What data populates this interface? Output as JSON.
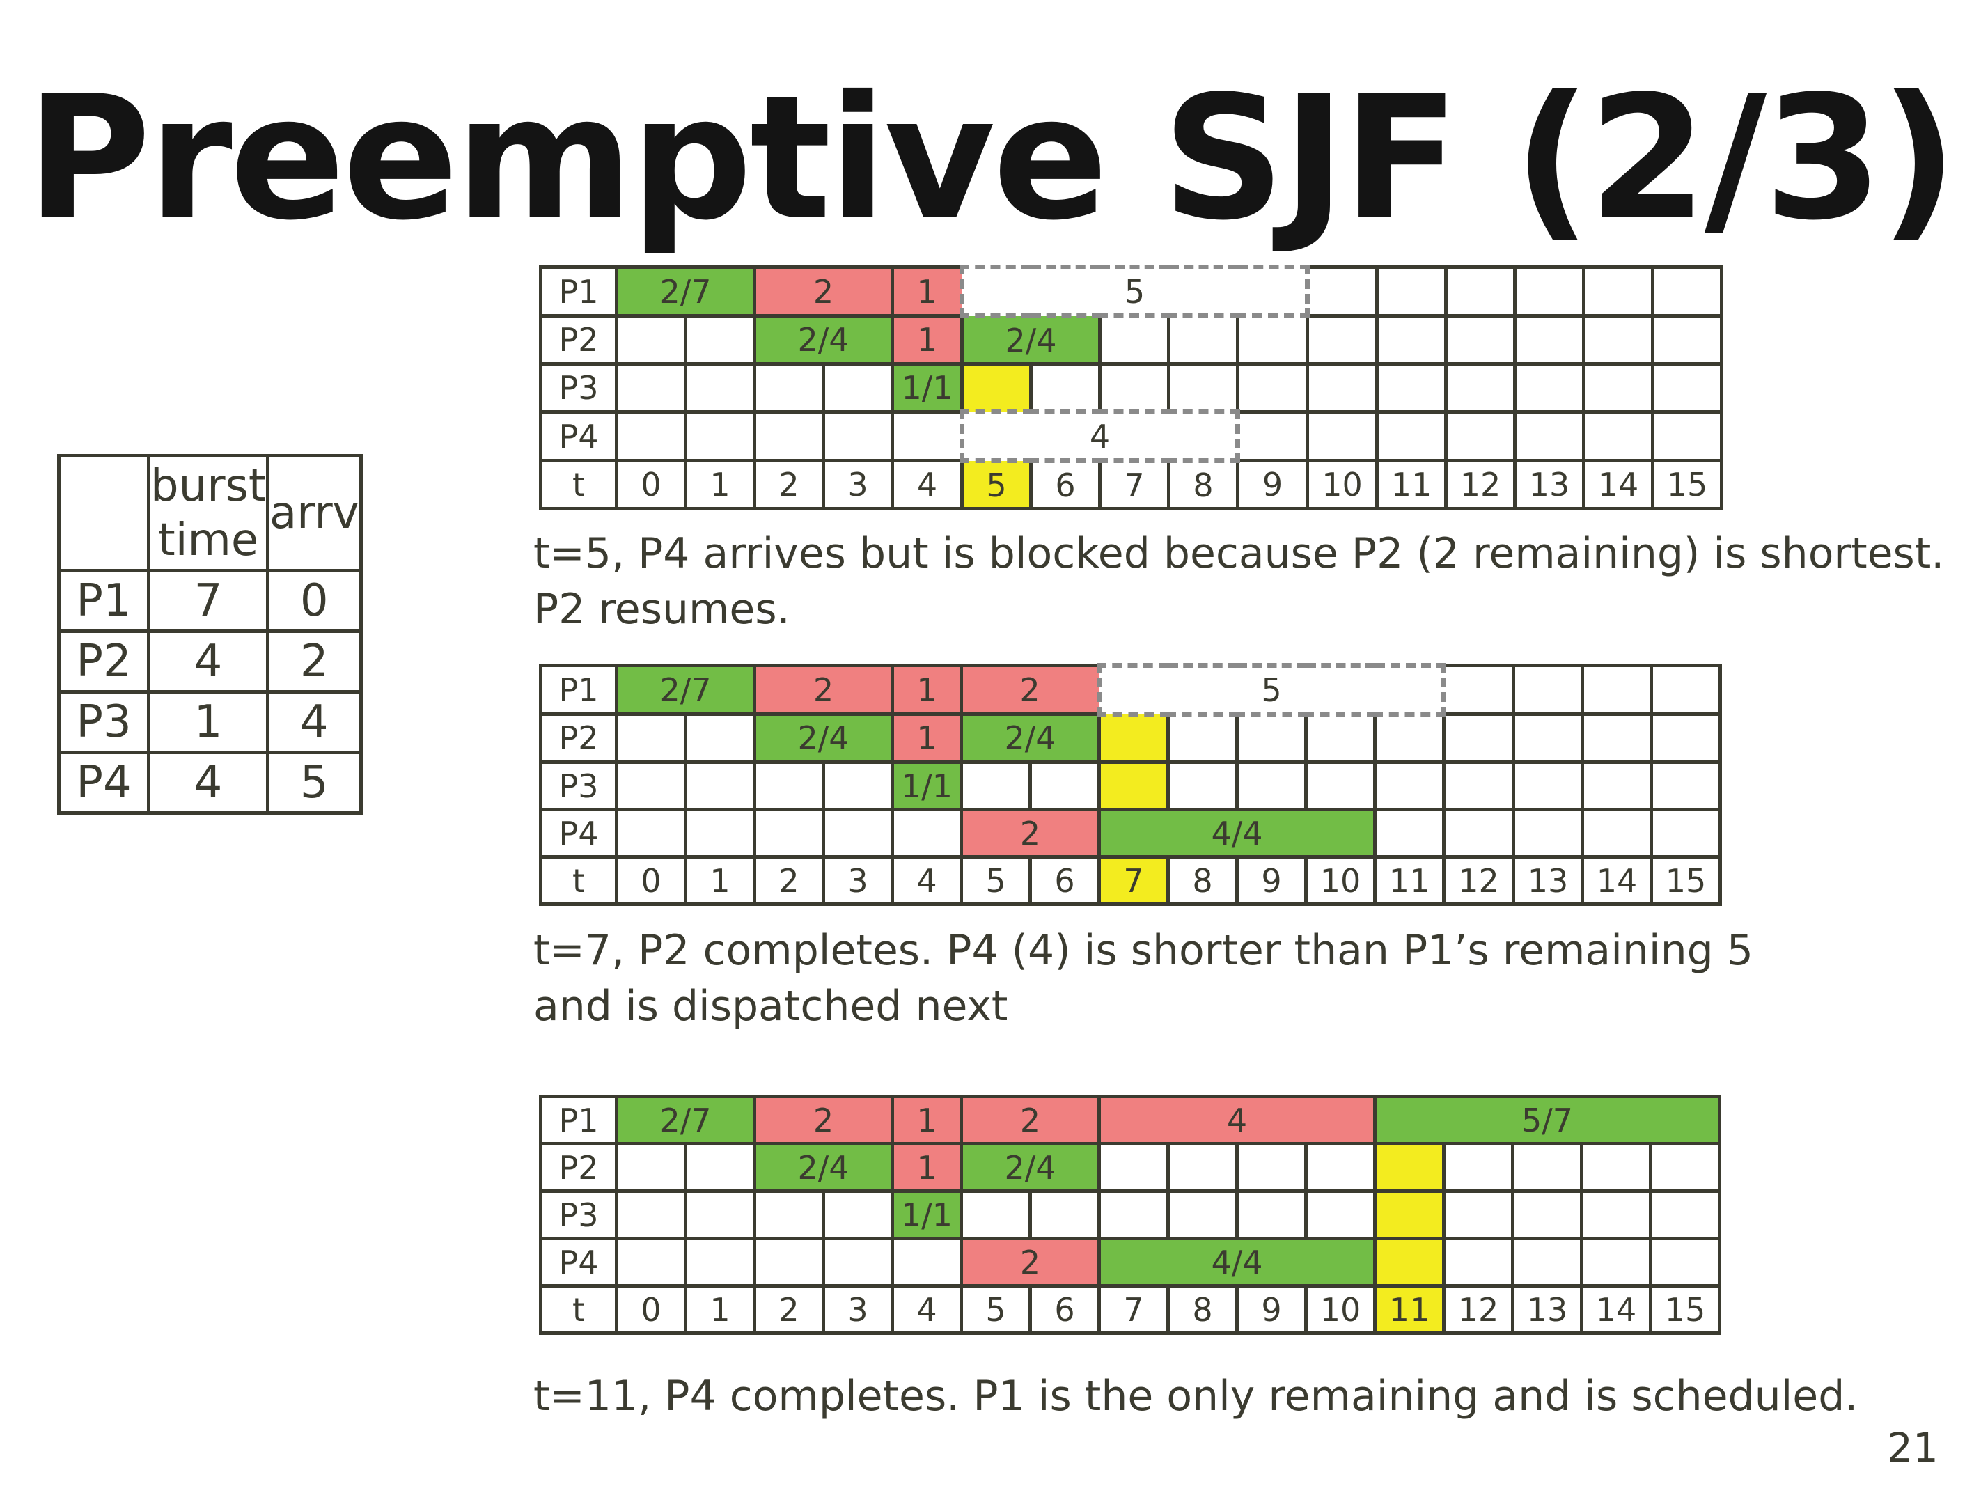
{
  "title": "Preemptive SJF (2/3)",
  "page_number": "21",
  "process_table": {
    "headers": [
      "",
      "burst\ntime",
      "arrv"
    ],
    "header_burst_line1": "burst",
    "header_burst_line2": "time",
    "header_arrv": "arrv",
    "rows": [
      {
        "process": "P1",
        "burst": "7",
        "arrival": "0"
      },
      {
        "process": "P2",
        "burst": "4",
        "arrival": "2"
      },
      {
        "process": "P3",
        "burst": "1",
        "arrival": "4"
      },
      {
        "process": "P4",
        "burst": "4",
        "arrival": "5"
      }
    ]
  },
  "colors": {
    "running": "#72bd46",
    "preempted": "#f08080",
    "event": "#f3ec1f",
    "waiting_outline": "#8a8a8a",
    "grid": "#3b3b30"
  },
  "gantt_1": {
    "time_label": "t",
    "times": [
      "0",
      "1",
      "2",
      "3",
      "4",
      "5",
      "6",
      "7",
      "8",
      "9",
      "10",
      "11",
      "12",
      "13",
      "14",
      "15"
    ],
    "rows": [
      {
        "label": "P1",
        "bars": [
          {
            "start": 0,
            "end": 2,
            "text": "2/7",
            "kind": "running"
          },
          {
            "start": 2,
            "end": 4,
            "text": "2",
            "kind": "preempted"
          },
          {
            "start": 4,
            "end": 5,
            "text": "1",
            "kind": "preempted"
          },
          {
            "start": 5,
            "end": 10,
            "text": "5",
            "kind": "waiting"
          }
        ]
      },
      {
        "label": "P2",
        "bars": [
          {
            "start": 2,
            "end": 4,
            "text": "2/4",
            "kind": "running"
          },
          {
            "start": 4,
            "end": 5,
            "text": "1",
            "kind": "preempted"
          },
          {
            "start": 5,
            "end": 7,
            "text": "2/4",
            "kind": "running"
          }
        ]
      },
      {
        "label": "P3",
        "bars": [
          {
            "start": 4,
            "end": 5,
            "text": "1/1",
            "kind": "running"
          },
          {
            "start": 5,
            "end": 6,
            "text": "",
            "kind": "event"
          }
        ]
      },
      {
        "label": "P4",
        "bars": [
          {
            "start": 5,
            "end": 9,
            "text": "4",
            "kind": "waiting"
          }
        ]
      }
    ],
    "highlight_time": 5,
    "caption_line1": "t=5, P4 arrives but is blocked because P2 (2 remaining) is shortest.",
    "caption_line2": "P2 resumes."
  },
  "gantt_2": {
    "time_label": "t",
    "times": [
      "0",
      "1",
      "2",
      "3",
      "4",
      "5",
      "6",
      "7",
      "8",
      "9",
      "10",
      "11",
      "12",
      "13",
      "14",
      "15"
    ],
    "rows": [
      {
        "label": "P1",
        "bars": [
          {
            "start": 0,
            "end": 2,
            "text": "2/7",
            "kind": "running"
          },
          {
            "start": 2,
            "end": 4,
            "text": "2",
            "kind": "preempted"
          },
          {
            "start": 4,
            "end": 5,
            "text": "1",
            "kind": "preempted"
          },
          {
            "start": 5,
            "end": 7,
            "text": "2",
            "kind": "preempted"
          },
          {
            "start": 7,
            "end": 12,
            "text": "5",
            "kind": "waiting"
          }
        ]
      },
      {
        "label": "P2",
        "bars": [
          {
            "start": 2,
            "end": 4,
            "text": "2/4",
            "kind": "running"
          },
          {
            "start": 4,
            "end": 5,
            "text": "1",
            "kind": "preempted"
          },
          {
            "start": 5,
            "end": 7,
            "text": "2/4",
            "kind": "running"
          },
          {
            "start": 7,
            "end": 8,
            "text": "",
            "kind": "event"
          }
        ]
      },
      {
        "label": "P3",
        "bars": [
          {
            "start": 4,
            "end": 5,
            "text": "1/1",
            "kind": "running"
          },
          {
            "start": 7,
            "end": 8,
            "text": "",
            "kind": "event"
          }
        ]
      },
      {
        "label": "P4",
        "bars": [
          {
            "start": 5,
            "end": 7,
            "text": "2",
            "kind": "preempted"
          },
          {
            "start": 7,
            "end": 11,
            "text": "4/4",
            "kind": "running"
          }
        ]
      }
    ],
    "highlight_time": 7,
    "caption_line1": "t=7, P2 completes.  P4 (4) is shorter than P1’s remaining 5",
    "caption_line2": "and is dispatched next"
  },
  "gantt_3": {
    "time_label": "t",
    "times": [
      "0",
      "1",
      "2",
      "3",
      "4",
      "5",
      "6",
      "7",
      "8",
      "9",
      "10",
      "11",
      "12",
      "13",
      "14",
      "15"
    ],
    "rows": [
      {
        "label": "P1",
        "bars": [
          {
            "start": 0,
            "end": 2,
            "text": "2/7",
            "kind": "running"
          },
          {
            "start": 2,
            "end": 4,
            "text": "2",
            "kind": "preempted"
          },
          {
            "start": 4,
            "end": 5,
            "text": "1",
            "kind": "preempted"
          },
          {
            "start": 5,
            "end": 7,
            "text": "2",
            "kind": "preempted"
          },
          {
            "start": 7,
            "end": 11,
            "text": "4",
            "kind": "preempted"
          },
          {
            "start": 11,
            "end": 16,
            "text": "5/7",
            "kind": "running"
          }
        ]
      },
      {
        "label": "P2",
        "bars": [
          {
            "start": 2,
            "end": 4,
            "text": "2/4",
            "kind": "running"
          },
          {
            "start": 4,
            "end": 5,
            "text": "1",
            "kind": "preempted"
          },
          {
            "start": 5,
            "end": 7,
            "text": "2/4",
            "kind": "running"
          },
          {
            "start": 11,
            "end": 12,
            "text": "",
            "kind": "event"
          }
        ]
      },
      {
        "label": "P3",
        "bars": [
          {
            "start": 4,
            "end": 5,
            "text": "1/1",
            "kind": "running"
          },
          {
            "start": 11,
            "end": 12,
            "text": "",
            "kind": "event"
          }
        ]
      },
      {
        "label": "P4",
        "bars": [
          {
            "start": 5,
            "end": 7,
            "text": "2",
            "kind": "preempted"
          },
          {
            "start": 7,
            "end": 11,
            "text": "4/4",
            "kind": "running"
          },
          {
            "start": 11,
            "end": 12,
            "text": "",
            "kind": "event"
          }
        ]
      }
    ],
    "highlight_time": 11,
    "caption_line1": "t=11, P4 completes.  P1 is the only remaining and is scheduled."
  }
}
